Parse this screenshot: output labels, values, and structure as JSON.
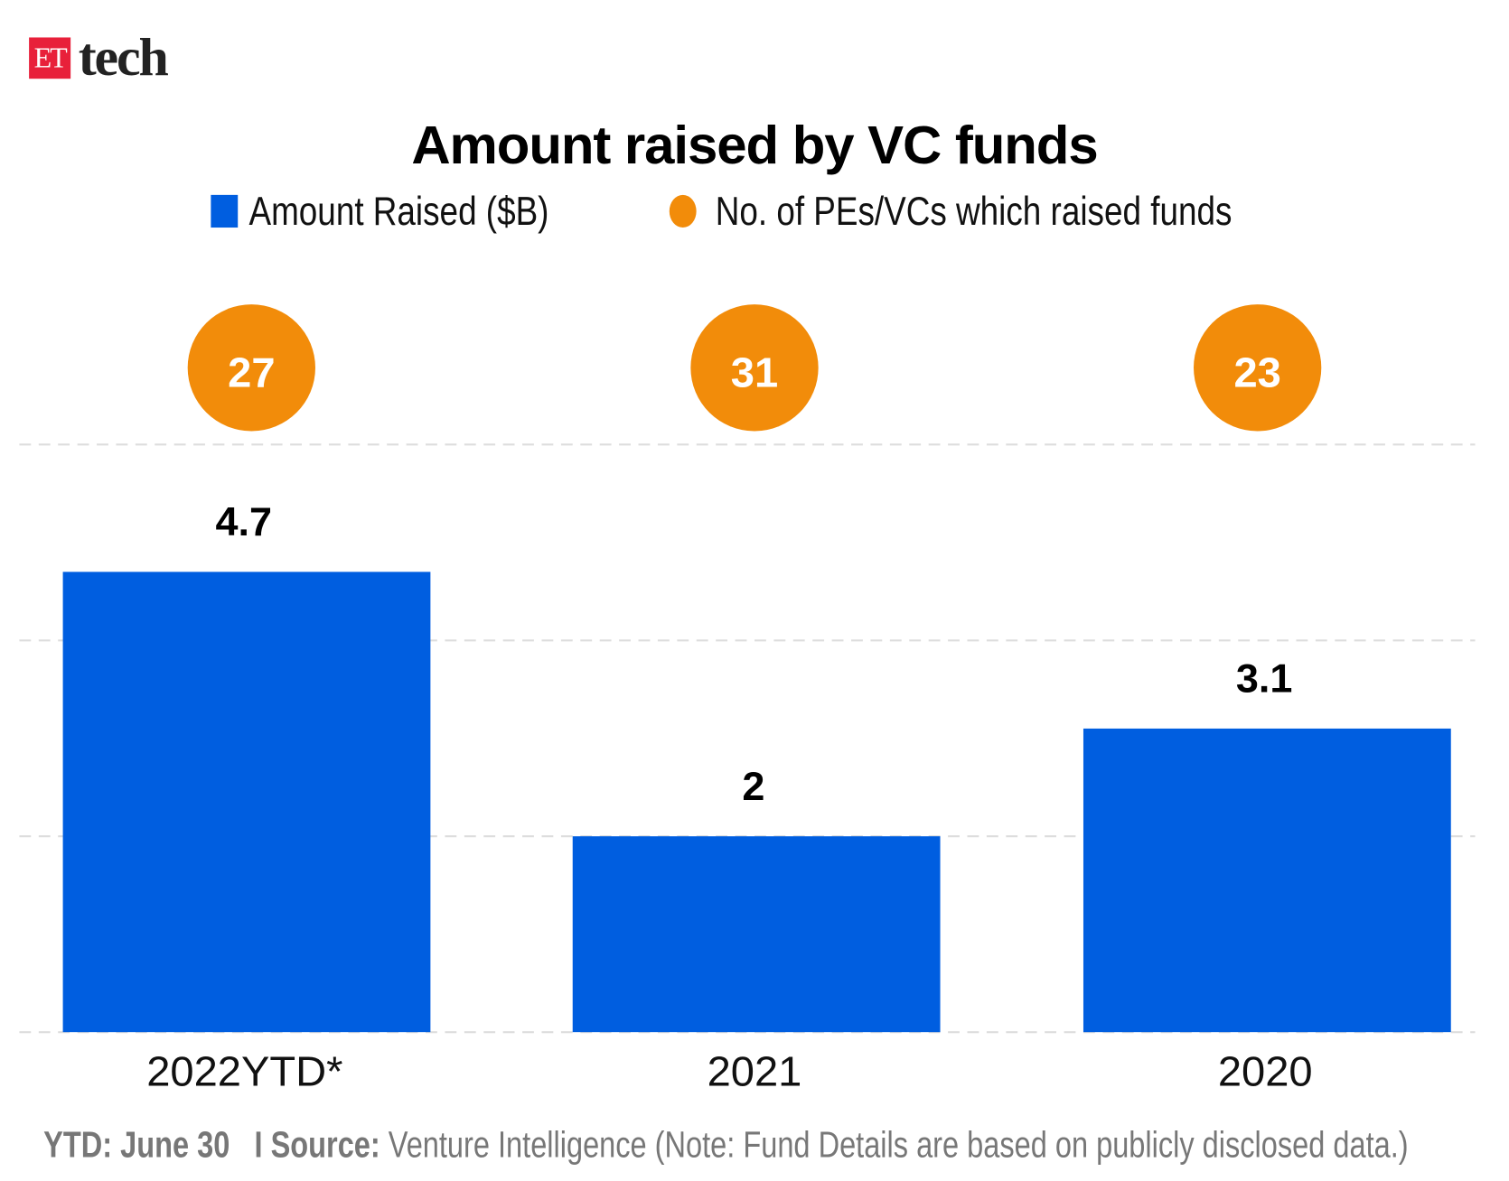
{
  "brand": {
    "et": "ET",
    "tech": "tech",
    "et_color": "#e8203a"
  },
  "colors": {
    "bar": "#005ee0",
    "circle": "#f28c0a",
    "grid": "#dddddd",
    "footer": "#777777"
  },
  "chart_data": {
    "type": "bar",
    "title": "Amount raised by VC funds",
    "categories": [
      "2022YTD*",
      "2021",
      "2020"
    ],
    "series": [
      {
        "name": "Amount Raised ($B)",
        "type": "bar",
        "values": [
          4.7,
          2,
          3.1
        ],
        "color": "#005ee0"
      },
      {
        "name": "No. of PEs/VCs which raised funds",
        "type": "circle-label",
        "values": [
          27,
          31,
          23
        ],
        "color": "#f28c0a"
      }
    ],
    "value_labels": [
      "4.7",
      "2",
      "3.1"
    ],
    "count_labels": [
      "27",
      "31",
      "23"
    ],
    "ylim": [
      0,
      6
    ],
    "grid": true,
    "legend_position": "top"
  },
  "footer": {
    "ytd_label": "YTD: June 30",
    "separator": "I",
    "source_label": "Source:",
    "source_text": "Venture Intelligence (Note: Fund Details are based on publicly disclosed data.)"
  }
}
